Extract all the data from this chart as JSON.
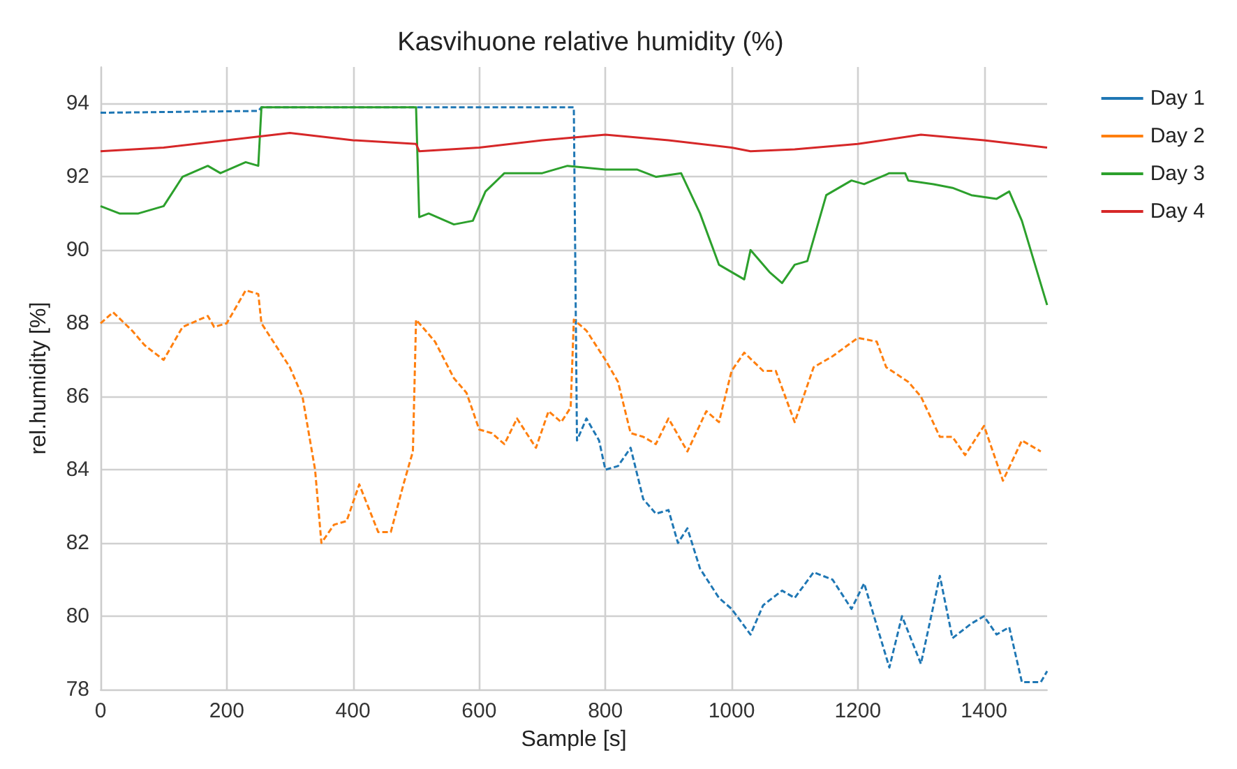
{
  "chart_data": {
    "type": "line",
    "title": "Kasvihuone relative humidity (%)",
    "xlabel": "Sample [s]",
    "ylabel": "rel.humidity [%]",
    "xlim": [
      0,
      1500
    ],
    "xticks": [
      0,
      200,
      400,
      600,
      800,
      1000,
      1200,
      1400
    ],
    "ylim": [
      78,
      95
    ],
    "yticks": [
      78,
      80,
      82,
      84,
      86,
      88,
      90,
      92,
      94
    ],
    "grid": true,
    "legend": "right",
    "marker": "none",
    "series": [
      {
        "name": "Day 1",
        "color": "#1f77b4",
        "line_style": "dashed",
        "x": [
          0,
          250,
          255,
          750,
          755,
          770,
          790,
          800,
          820,
          840,
          860,
          880,
          900,
          915,
          930,
          950,
          980,
          1000,
          1030,
          1050,
          1080,
          1100,
          1130,
          1160,
          1190,
          1210,
          1250,
          1270,
          1300,
          1330,
          1350,
          1380,
          1400,
          1420,
          1440,
          1460,
          1490,
          1500
        ],
        "values": [
          93.75,
          93.8,
          93.9,
          93.9,
          84.8,
          85.4,
          84.8,
          84.0,
          84.1,
          84.6,
          83.2,
          82.8,
          82.9,
          82.0,
          82.4,
          81.3,
          80.5,
          80.2,
          79.5,
          80.3,
          80.7,
          80.5,
          81.2,
          81.0,
          80.2,
          80.9,
          78.6,
          80.0,
          78.7,
          81.1,
          79.4,
          79.8,
          80.0,
          79.5,
          79.7,
          78.2,
          78.2,
          78.5
        ]
      },
      {
        "name": "Day 2",
        "color": "#ff7f0e",
        "line_style": "dashed",
        "x": [
          0,
          20,
          50,
          70,
          100,
          130,
          170,
          180,
          200,
          230,
          250,
          255,
          300,
          320,
          340,
          350,
          370,
          390,
          410,
          440,
          460,
          480,
          495,
          500,
          530,
          560,
          580,
          600,
          620,
          640,
          660,
          690,
          710,
          730,
          745,
          750,
          770,
          800,
          820,
          840,
          860,
          880,
          900,
          930,
          960,
          980,
          1000,
          1020,
          1050,
          1070,
          1100,
          1130,
          1160,
          1200,
          1230,
          1245,
          1280,
          1300,
          1330,
          1350,
          1370,
          1400,
          1430,
          1460,
          1490
        ],
        "values": [
          88.0,
          88.3,
          87.8,
          87.4,
          87.0,
          87.9,
          88.2,
          87.9,
          88.0,
          88.9,
          88.8,
          88.0,
          86.8,
          86.0,
          84.0,
          82.0,
          82.5,
          82.6,
          83.6,
          82.3,
          82.3,
          83.6,
          84.5,
          88.1,
          87.5,
          86.5,
          86.1,
          85.1,
          85.0,
          84.7,
          85.4,
          84.6,
          85.6,
          85.3,
          85.7,
          88.1,
          87.8,
          87.0,
          86.4,
          85.0,
          84.9,
          84.7,
          85.4,
          84.5,
          85.6,
          85.3,
          86.7,
          87.2,
          86.7,
          86.7,
          85.3,
          86.8,
          87.1,
          87.6,
          87.5,
          86.8,
          86.4,
          86.0,
          84.9,
          84.9,
          84.4,
          85.2,
          83.7,
          84.8,
          84.5
        ]
      },
      {
        "name": "Day 3",
        "color": "#2ca02c",
        "line_style": "solid",
        "x": [
          0,
          30,
          60,
          100,
          130,
          170,
          190,
          230,
          250,
          255,
          500,
          505,
          520,
          560,
          590,
          610,
          640,
          700,
          740,
          800,
          850,
          880,
          920,
          950,
          980,
          1020,
          1030,
          1060,
          1080,
          1100,
          1120,
          1150,
          1190,
          1210,
          1250,
          1275,
          1280,
          1320,
          1350,
          1380,
          1420,
          1440,
          1460,
          1500
        ],
        "values": [
          91.2,
          91.0,
          91.0,
          91.2,
          92.0,
          92.3,
          92.1,
          92.4,
          92.3,
          93.9,
          93.9,
          90.9,
          91.0,
          90.7,
          90.8,
          91.6,
          92.1,
          92.1,
          92.3,
          92.2,
          92.2,
          92.0,
          92.1,
          91.0,
          89.6,
          89.2,
          90.0,
          89.4,
          89.1,
          89.6,
          89.7,
          91.5,
          91.9,
          91.8,
          92.1,
          92.1,
          91.9,
          91.8,
          91.7,
          91.5,
          91.4,
          91.6,
          90.8,
          88.5
        ]
      },
      {
        "name": "Day 4",
        "color": "#d62728",
        "line_style": "solid",
        "x": [
          0,
          100,
          200,
          250,
          300,
          400,
          500,
          505,
          600,
          700,
          800,
          900,
          1000,
          1030,
          1100,
          1200,
          1300,
          1400,
          1500
        ],
        "values": [
          92.7,
          92.8,
          93.0,
          93.1,
          93.2,
          93.0,
          92.9,
          92.7,
          92.8,
          93.0,
          93.15,
          93.0,
          92.8,
          92.7,
          92.75,
          92.9,
          93.15,
          93.0,
          92.8
        ]
      }
    ]
  }
}
